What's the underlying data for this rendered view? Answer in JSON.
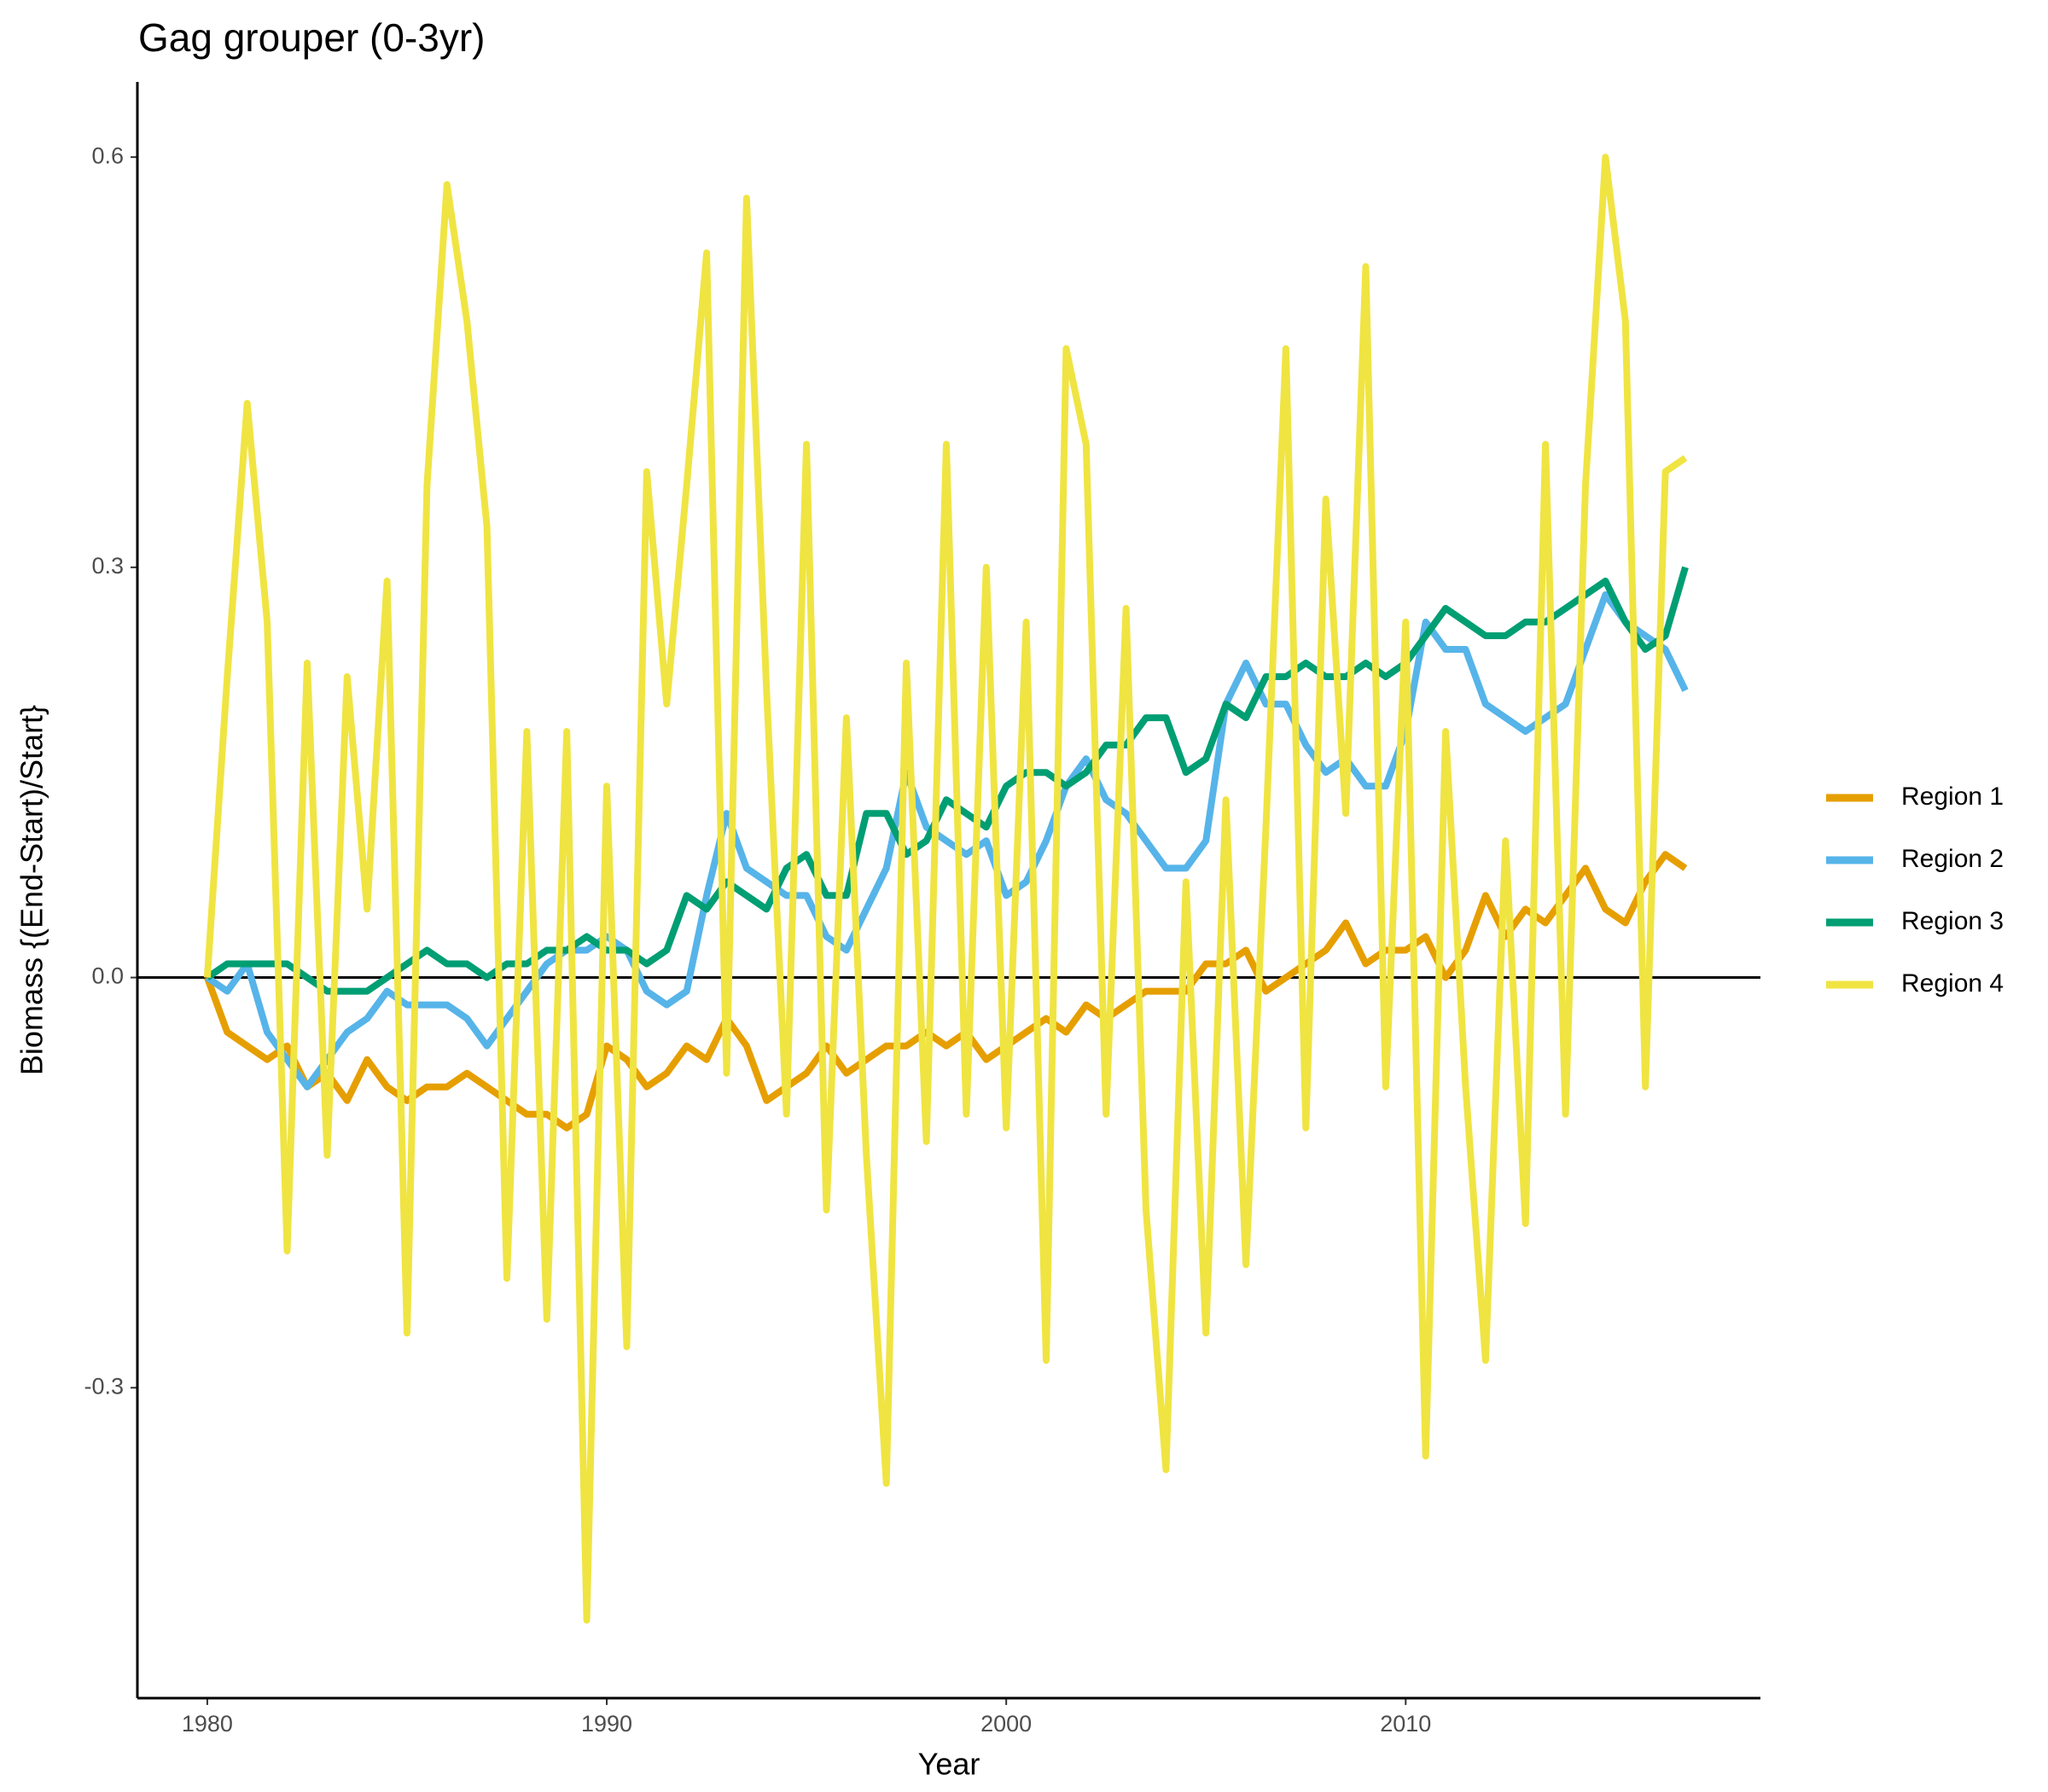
{
  "chart_data": {
    "type": "line",
    "title": "Gag grouper (0-3yr)",
    "x_label": "Year",
    "y_label": "Biomass {(End-Start)/Start}",
    "x": [
      1980,
      1980.5,
      1981,
      1981.5,
      1982,
      1982.5,
      1983,
      1983.5,
      1984,
      1984.5,
      1985,
      1985.5,
      1986,
      1986.5,
      1987,
      1987.5,
      1988,
      1988.5,
      1989,
      1989.5,
      1990,
      1990.5,
      1991,
      1991.5,
      1992,
      1992.5,
      1993,
      1993.5,
      1994,
      1994.5,
      1995,
      1995.5,
      1996,
      1996.5,
      1997,
      1997.5,
      1998,
      1998.5,
      1999,
      1999.5,
      2000,
      2000.5,
      2001,
      2001.5,
      2002,
      2002.5,
      2003,
      2003.5,
      2004,
      2004.5,
      2005,
      2005.5,
      2006,
      2006.5,
      2007,
      2007.5,
      2008,
      2008.5,
      2009,
      2009.5,
      2010,
      2010.5,
      2011,
      2011.5,
      2012,
      2012.5,
      2013,
      2013.5,
      2014,
      2014.5,
      2015,
      2015.5,
      2016,
      2016.5,
      2017
    ],
    "series": [
      {
        "name": "Region 1",
        "color": "#E69F00",
        "values": [
          0,
          -0.04,
          -0.05,
          -0.06,
          -0.05,
          -0.08,
          -0.07,
          -0.09,
          -0.06,
          -0.08,
          -0.09,
          -0.08,
          -0.08,
          -0.07,
          -0.08,
          -0.09,
          -0.1,
          -0.1,
          -0.11,
          -0.1,
          -0.05,
          -0.06,
          -0.08,
          -0.07,
          -0.05,
          -0.06,
          -0.03,
          -0.05,
          -0.09,
          -0.08,
          -0.07,
          -0.05,
          -0.07,
          -0.06,
          -0.05,
          -0.05,
          -0.04,
          -0.05,
          -0.04,
          -0.06,
          -0.05,
          -0.04,
          -0.03,
          -0.04,
          -0.02,
          -0.03,
          -0.02,
          -0.01,
          -0.01,
          -0.01,
          0.01,
          0.01,
          0.02,
          -0.01,
          0,
          0.01,
          0.02,
          0.04,
          0.01,
          0.02,
          0.02,
          0.03,
          0,
          0.02,
          0.06,
          0.03,
          0.05,
          0.04,
          0.06,
          0.08,
          0.05,
          0.04,
          0.07,
          0.09,
          0.08
        ]
      },
      {
        "name": "Region 2",
        "color": "#56B4E9",
        "values": [
          0,
          -0.01,
          0.01,
          -0.04,
          -0.06,
          -0.08,
          -0.06,
          -0.04,
          -0.03,
          -0.01,
          -0.02,
          -0.02,
          -0.02,
          -0.03,
          -0.05,
          -0.03,
          -0.01,
          0.01,
          0.02,
          0.02,
          0.03,
          0.02,
          -0.01,
          -0.02,
          -0.01,
          0.06,
          0.12,
          0.08,
          0.07,
          0.06,
          0.06,
          0.03,
          0.02,
          0.05,
          0.08,
          0.15,
          0.11,
          0.1,
          0.09,
          0.1,
          0.06,
          0.07,
          0.1,
          0.14,
          0.16,
          0.13,
          0.12,
          0.1,
          0.08,
          0.08,
          0.1,
          0.2,
          0.23,
          0.2,
          0.2,
          0.17,
          0.15,
          0.16,
          0.14,
          0.14,
          0.18,
          0.26,
          0.24,
          0.24,
          0.2,
          0.19,
          0.18,
          0.19,
          0.2,
          0.24,
          0.28,
          0.26,
          0.25,
          0.24,
          0.21
        ]
      },
      {
        "name": "Region 3",
        "color": "#009E73",
        "values": [
          0,
          0.01,
          0.01,
          0.01,
          0.01,
          0,
          -0.01,
          -0.01,
          -0.01,
          0,
          0.01,
          0.02,
          0.01,
          0.01,
          0,
          0.01,
          0.01,
          0.02,
          0.02,
          0.03,
          0.02,
          0.02,
          0.01,
          0.02,
          0.06,
          0.05,
          0.07,
          0.06,
          0.05,
          0.08,
          0.09,
          0.06,
          0.06,
          0.12,
          0.12,
          0.09,
          0.1,
          0.13,
          0.12,
          0.11,
          0.14,
          0.15,
          0.15,
          0.14,
          0.15,
          0.17,
          0.17,
          0.19,
          0.19,
          0.15,
          0.16,
          0.2,
          0.19,
          0.22,
          0.22,
          0.23,
          0.22,
          0.22,
          0.23,
          0.22,
          0.23,
          0.25,
          0.27,
          0.26,
          0.25,
          0.25,
          0.26,
          0.26,
          0.27,
          0.28,
          0.29,
          0.26,
          0.24,
          0.25,
          0.3
        ]
      },
      {
        "name": "Region 4",
        "color": "#F0E442",
        "values": [
          0,
          0.22,
          0.42,
          0.26,
          -0.2,
          0.23,
          -0.13,
          0.22,
          0.05,
          0.29,
          -0.26,
          0.36,
          0.58,
          0.48,
          0.33,
          -0.22,
          0.18,
          -0.25,
          0.18,
          -0.47,
          0.14,
          -0.27,
          0.37,
          0.2,
          0.36,
          0.53,
          -0.07,
          0.57,
          0.21,
          -0.1,
          0.39,
          -0.17,
          0.19,
          -0.13,
          -0.37,
          0.23,
          -0.12,
          0.39,
          -0.1,
          0.3,
          -0.11,
          0.26,
          -0.28,
          0.46,
          0.39,
          -0.1,
          0.27,
          -0.17,
          -0.36,
          0.07,
          -0.26,
          0.13,
          -0.21,
          0.11,
          0.46,
          -0.11,
          0.35,
          0.12,
          0.52,
          -0.08,
          0.26,
          -0.35,
          0.18,
          -0.08,
          -0.28,
          0.1,
          -0.18,
          0.39,
          -0.1,
          0.36,
          0.6,
          0.48,
          -0.08,
          0.37,
          0.38
        ]
      }
    ],
    "xlim": [
      1978.25,
      2018.88
    ],
    "ylim": [
      -0.527,
      0.655
    ],
    "xticks": [
      1980,
      1990,
      2000,
      2010
    ],
    "yticks": [
      -0.3,
      {
        "value": 0,
        "label": "0.0"
      },
      0.3,
      0.6
    ],
    "hline": 0,
    "grid": false,
    "legend": "right"
  }
}
